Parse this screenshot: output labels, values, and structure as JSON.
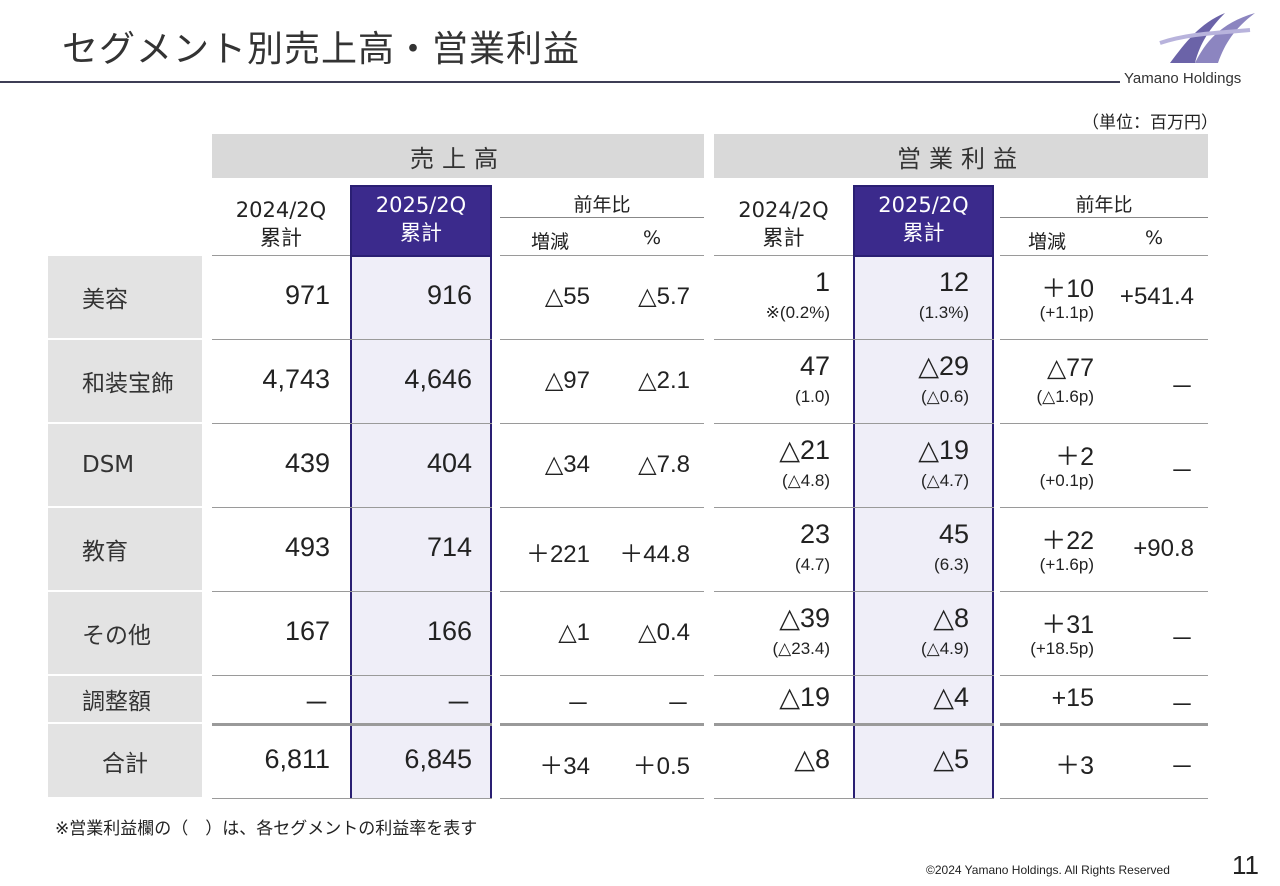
{
  "page": {
    "title": "セグメント別売上高・営業利益",
    "unit": "（単位：百万円）",
    "note": "※営業利益欄の（　）は、各セグメントの利益率を表す",
    "copyright": "©2024 Yamano Holdings. All Rights Reserved",
    "page_number": "11",
    "logo_text": "Yamano Holdings"
  },
  "headers": {
    "sales": "売上高",
    "profit": "営業利益",
    "y2024": "2024/2Q",
    "y2025": "2025/2Q",
    "cum": "累計",
    "yoy": "前年比",
    "diff": "増減",
    "pct": "%"
  },
  "rows": [
    {
      "label": "美容",
      "s24": "971",
      "s25": "916",
      "sd": "△55",
      "sp": "△5.7",
      "p24": "1",
      "p24r": "※(0.2%)",
      "p25": "12",
      "p25r": "(1.3%)",
      "pd": "＋10",
      "pdr": "(+1.1p)",
      "pp": "+541.4"
    },
    {
      "label": "和装宝飾",
      "s24": "4,743",
      "s25": "4,646",
      "sd": "△97",
      "sp": "△2.1",
      "p24": "47",
      "p24r": "(1.0)",
      "p25": "△29",
      "p25r": "(△0.6)",
      "pd": "△77",
      "pdr": "(△1.6p)",
      "pp": "－"
    },
    {
      "label": "DSM",
      "s24": "439",
      "s25": "404",
      "sd": "△34",
      "sp": "△7.8",
      "p24": "△21",
      "p24r": "(△4.8)",
      "p25": "△19",
      "p25r": "(△4.7)",
      "pd": "＋2",
      "pdr": "(+0.1p)",
      "pp": "－"
    },
    {
      "label": "教育",
      "s24": "493",
      "s25": "714",
      "sd": "＋221",
      "sp": "＋44.8",
      "p24": "23",
      "p24r": "(4.7)",
      "p25": "45",
      "p25r": "(6.3)",
      "pd": "＋22",
      "pdr": "(+1.6p)",
      "pp": "+90.8"
    },
    {
      "label": "その他",
      "s24": "167",
      "s25": "166",
      "sd": "△1",
      "sp": "△0.4",
      "p24": "△39",
      "p24r": "(△23.4)",
      "p25": "△8",
      "p25r": "(△4.9)",
      "pd": "＋31",
      "pdr": "(+18.5p)",
      "pp": "－"
    },
    {
      "label": "調整額",
      "s24": "－",
      "s25": "－",
      "sd": "－",
      "sp": "－",
      "p24": "△19",
      "p24r": "",
      "p25": "△4",
      "p25r": "",
      "pd": "+15",
      "pdr": "",
      "pp": "－"
    },
    {
      "label": "合計",
      "s24": "6,811",
      "s25": "6,845",
      "sd": "＋34",
      "sp": "＋0.5",
      "p24": "△8",
      "p24r": "",
      "p25": "△5",
      "p25r": "",
      "pd": "＋3",
      "pdr": "",
      "pp": "－"
    }
  ]
}
